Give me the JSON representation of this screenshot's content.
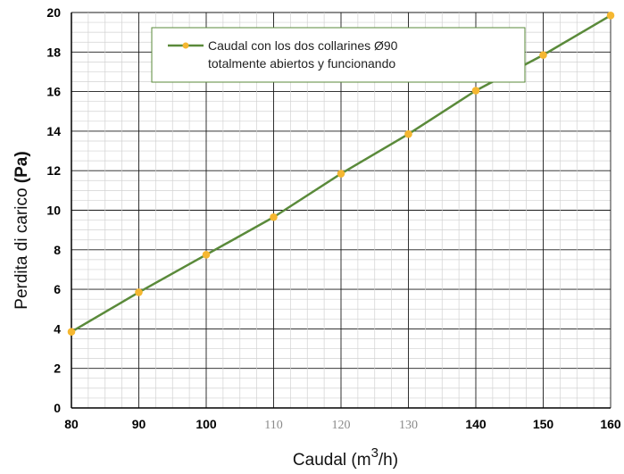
{
  "chart_data": {
    "type": "line",
    "x": [
      80,
      90,
      100,
      110,
      120,
      130,
      140,
      150,
      160
    ],
    "series": [
      {
        "name": "Caudal con los dos collarines Ø90 totalmente abiertos y funcionando",
        "legend_lines": [
          "Caudal con los dos collarines Ø90",
          "totalmente abiertos y funcionando"
        ],
        "values": [
          3.85,
          5.85,
          7.75,
          9.65,
          11.85,
          13.85,
          16.05,
          17.85,
          19.85
        ],
        "color": "#5a8a3a",
        "marker_color": "#f5b731"
      }
    ],
    "x_ticks": [
      "80",
      "90",
      "100",
      "110",
      "120",
      "130",
      "140",
      "150",
      "160"
    ],
    "x_ticks_light": [
      "110",
      "120",
      "130"
    ],
    "y_ticks": [
      "0",
      "2",
      "4",
      "6",
      "8",
      "10",
      "12",
      "14",
      "16",
      "18",
      "20"
    ],
    "xlabel_main": "Caudal (m",
    "xlabel_sup": "3",
    "xlabel_end": "/h)",
    "ylabel_main": "Perdita di carico ",
    "ylabel_bold": "(Pa)",
    "xlim": [
      80,
      160
    ],
    "ylim": [
      0,
      20
    ],
    "grid": true,
    "legend_position": "top-center",
    "legend_border_color": "#5a8a3a"
  }
}
